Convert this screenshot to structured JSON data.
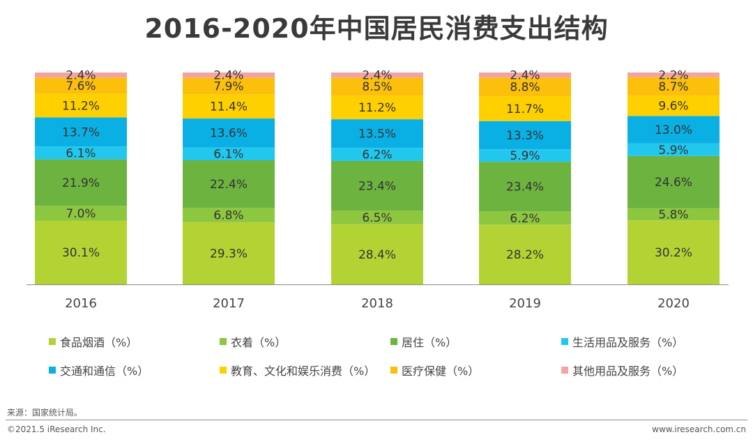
{
  "chart_data": {
    "type": "stacked-bar",
    "title": "2016-2020年中国居民消费支出结构",
    "categories": [
      "2016",
      "2017",
      "2018",
      "2019",
      "2020"
    ],
    "ylim": [
      0,
      100
    ],
    "grid": false,
    "legend_position": "bottom",
    "series": [
      {
        "name": "食品烟酒（%）",
        "color": "#b3d335",
        "values": [
          30.1,
          29.3,
          28.4,
          28.2,
          30.2
        ]
      },
      {
        "name": "衣着（%）",
        "color": "#8dc63f",
        "values": [
          7.0,
          6.8,
          6.5,
          6.2,
          5.8
        ]
      },
      {
        "name": "居住（%）",
        "color": "#6cb33f",
        "values": [
          21.9,
          22.4,
          23.4,
          23.4,
          24.6
        ]
      },
      {
        "name": "生活用品及服务（%）",
        "color": "#22c7ee",
        "values": [
          6.1,
          6.1,
          6.2,
          5.9,
          5.9
        ]
      },
      {
        "name": "交通和通信（%）",
        "color": "#0ab0e4",
        "values": [
          13.7,
          13.6,
          13.5,
          13.3,
          13.0
        ]
      },
      {
        "name": "教育、文化和娱乐消费（%）",
        "color": "#ffd000",
        "values": [
          11.2,
          11.4,
          11.2,
          11.7,
          9.6
        ]
      },
      {
        "name": "医疗保健（%）",
        "color": "#fbbf0c",
        "values": [
          7.6,
          7.9,
          8.5,
          8.8,
          8.7
        ]
      },
      {
        "name": "其他用品及服务（%）",
        "color": "#f4a3a3",
        "values": [
          2.4,
          2.4,
          2.4,
          2.4,
          2.2
        ]
      }
    ],
    "labels": {
      "2016": [
        "30.1%",
        "7.0%",
        "21.9%",
        "6.1%",
        "13.7%",
        "11.2%",
        "7.6%",
        "2.4%"
      ],
      "2017": [
        "29.3%",
        "6.8%",
        "22.4%",
        "6.1%",
        "13.6%",
        "11.4%",
        "7.9%",
        "2.4%"
      ],
      "2018": [
        "28.4%",
        "6.5%",
        "23.4%",
        "6.2%",
        "13.5%",
        "11.2%",
        "8.5%",
        "2.4%"
      ],
      "2019": [
        "28.2%",
        "6.2%",
        "23.4%",
        "5.9%",
        "13.3%",
        "11.7%",
        "8.8%",
        "2.4%"
      ],
      "2020": [
        "30.2%",
        "5.8%",
        "24.6%",
        "5.9%",
        "13.0%",
        "9.6%",
        "8.7%",
        "2.2%"
      ]
    }
  },
  "footer": {
    "source": "来源：国家统计局。",
    "copyright": "©2021.5 iResearch Inc.",
    "website": "www.iresearch.com.cn"
  }
}
